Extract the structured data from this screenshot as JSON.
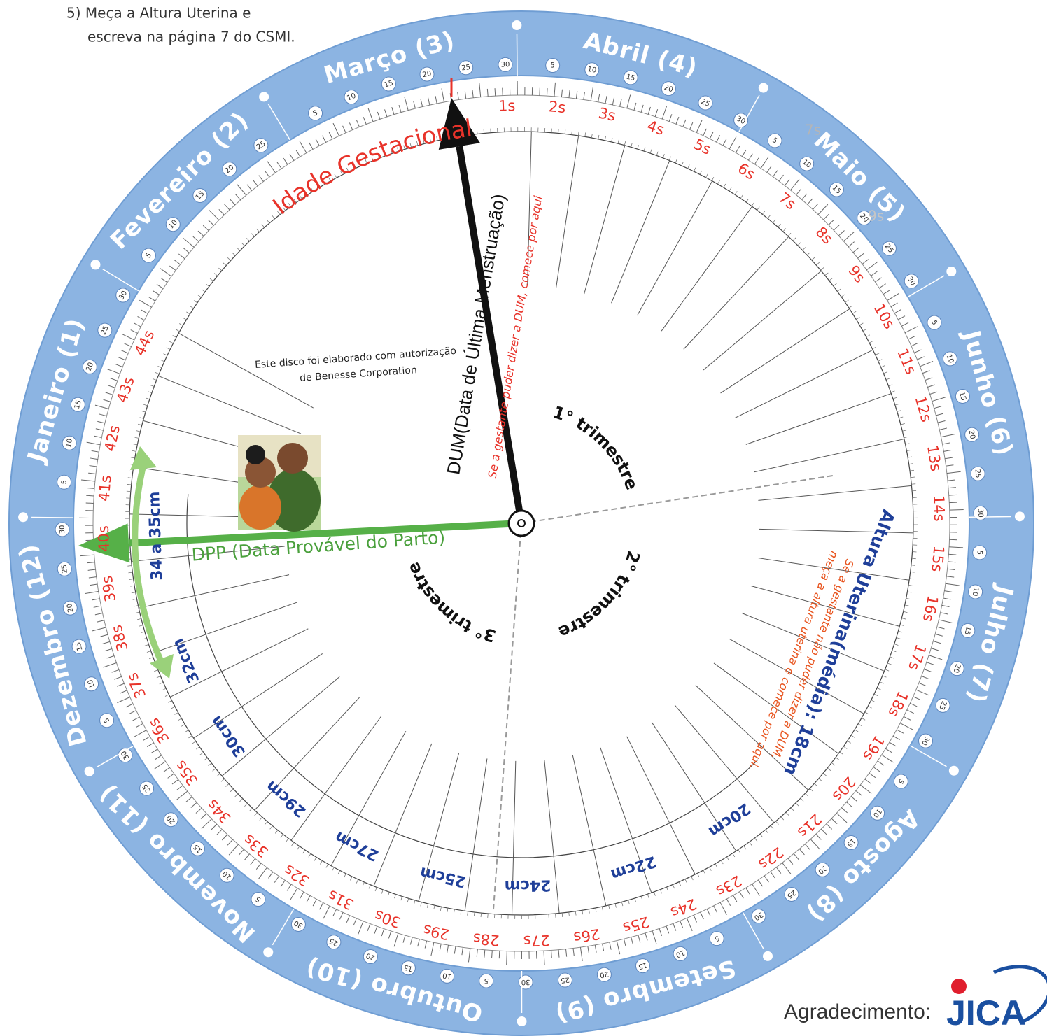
{
  "instruction": [
    "5) Meça a Altura Uterina e",
    "escreva na página 7 do CSMI."
  ],
  "months": [
    "Janeiro (1)",
    "Fevereiro (2)",
    "Março (3)",
    "Abril (4)",
    "Maio (5)",
    "Junho (6)",
    "Julho (7)",
    "Agosto (8)",
    "Setembro (9)",
    "Outubro (10)",
    "Novembro (11)",
    "Dezembro (12)"
  ],
  "day_numbers": [
    5,
    10,
    15,
    20,
    25,
    30
  ],
  "weeks": [
    "1s",
    "2s",
    "3s",
    "4s",
    "5s",
    "6s",
    "7s",
    "8s",
    "9s",
    "10s",
    "11s",
    "12s",
    "13s",
    "14s",
    "15s",
    "16s",
    "17s",
    "18s",
    "19s",
    "20s",
    "21s",
    "22s",
    "23s",
    "24s",
    "25s",
    "26s",
    "27s",
    "28s",
    "29s",
    "30s",
    "31s",
    "32s",
    "33s",
    "34s",
    "35s",
    "36s",
    "37s",
    "38s",
    "39s",
    "40s",
    "41s",
    "42s",
    "43s",
    "44s"
  ],
  "faint_labels": [
    "7s",
    "9s"
  ],
  "heights": [
    "32cm",
    "30cm",
    "29cm",
    "27cm",
    "25cm",
    "24cm",
    "22cm",
    "20cm"
  ],
  "height_range": "34 a 35cm",
  "gestational_age": "Idade Gestacional",
  "dum": {
    "label": "DUM(Data de Última Menstruação)",
    "hint": "Se a gestante puder dizer a DUM, comece por aqui"
  },
  "dpp": "DPP (Data Provável do Parto)",
  "trimesters": [
    "1° trimestre",
    "2° trimestre",
    "3° trimestre"
  ],
  "uterine_height": {
    "label": "Altura Uterina(média): 18cm",
    "hint": [
      "Se a gestante não puder dizer a DUM,",
      "meça a altura uterina e comece por aqui."
    ]
  },
  "credit": [
    "Este disco foi elaborado com autorização",
    "de Benesse Corporation"
  ],
  "acknowledgement": {
    "label": "Agradecimento:",
    "logo": "JICA"
  }
}
